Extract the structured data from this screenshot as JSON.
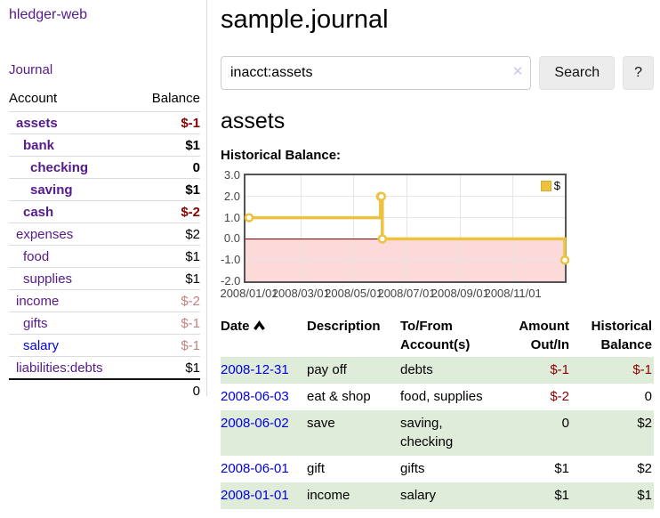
{
  "sidebar": {
    "app_title": "hledger-web",
    "nav_journal": "Journal",
    "accounts": {
      "col_account": "Account",
      "col_balance": "Balance",
      "rows": [
        {
          "name": "assets",
          "depth": 1,
          "bold": true,
          "balance": "$-1",
          "balance_style": "neg-strong"
        },
        {
          "name": "bank",
          "depth": 2,
          "bold": true,
          "balance": "$1",
          "balance_style": "pos-strong"
        },
        {
          "name": "checking",
          "depth": 3,
          "bold": true,
          "balance": "0",
          "balance_style": "pos-strong"
        },
        {
          "name": "saving",
          "depth": 3,
          "bold": true,
          "balance": "$1",
          "balance_style": "pos-strong"
        },
        {
          "name": "cash",
          "depth": 2,
          "bold": true,
          "balance": "$-2",
          "balance_style": "neg-strong"
        },
        {
          "name": "expenses",
          "depth": 1,
          "bold": false,
          "balance": "$2",
          "balance_style": "pos"
        },
        {
          "name": "food",
          "depth": 2,
          "bold": false,
          "balance": "$1",
          "balance_style": "pos"
        },
        {
          "name": "supplies",
          "depth": 2,
          "bold": false,
          "balance": "$1",
          "balance_style": "pos"
        },
        {
          "name": "income",
          "depth": 1,
          "bold": false,
          "balance": "$-2",
          "balance_style": "neg-light"
        },
        {
          "name": "gifts",
          "depth": 2,
          "bold": false,
          "balance": "$-1",
          "balance_style": "neg-light"
        },
        {
          "name": "salary",
          "depth": 2,
          "bold": false,
          "balance": "$-1",
          "balance_style": "neg-light",
          "link_color": "blue"
        },
        {
          "name": "liabilities:debts",
          "depth": 1,
          "bold": false,
          "balance": "$1",
          "balance_style": "pos"
        }
      ],
      "total": "0"
    }
  },
  "main": {
    "title": "sample.journal",
    "search": {
      "value": "inacct:assets",
      "clear": "✕",
      "submit_label": "Search",
      "help_label": "?"
    },
    "account_heading": "assets",
    "section_label": "Historical Balance:"
  },
  "chart_data": {
    "type": "line",
    "title": "Historical Balance",
    "series": [
      {
        "name": "$",
        "style": "step",
        "points": [
          [
            "2008-01-01",
            1
          ],
          [
            "2008-06-01",
            2
          ],
          [
            "2008-06-02",
            2
          ],
          [
            "2008-06-03",
            0
          ],
          [
            "2008-12-31",
            -1
          ]
        ]
      }
    ],
    "x_range": [
      "2008-01-01",
      "2008-12-31"
    ],
    "x_tick_dates": [
      "2008-01-01",
      "2008-03-01",
      "2008-05-01",
      "2008-07-01",
      "2008-09-01",
      "2008-11-01"
    ],
    "x_tick_labels": [
      "2008/01/01",
      "2008/03/01",
      "2008/05/01",
      "2008/07/01",
      "2008/09/01",
      "2008/11/01"
    ],
    "y_ticks": [
      3,
      2,
      1,
      0,
      -1,
      -2
    ],
    "y_tick_labels": [
      "3.0",
      "2.0",
      "1.0",
      "0.0",
      "-1.0",
      "-2.0"
    ],
    "ylim": [
      -2,
      3
    ],
    "grid": true,
    "legend": {
      "label": "$",
      "position": "top-right"
    },
    "colors": {
      "series": "#edc240",
      "marker_fill": "#ffffff",
      "negative_region": "#fcdada",
      "zero_line": "#8b0000",
      "grid": "#e6e6e6",
      "border": "#545454"
    }
  },
  "register": {
    "headers": {
      "date": "Date",
      "description": "Description",
      "accounts": "To/From Account(s)",
      "amount": "Amount Out/In",
      "balance": "Historical Balance"
    },
    "sort": {
      "column": "date",
      "direction": "asc",
      "icon": "chevron-up-icon"
    },
    "rows": [
      {
        "date": "2008-12-31",
        "description": "pay off",
        "accounts": "debts",
        "amount": "$-1",
        "amount_neg": true,
        "balance": "$-1",
        "balance_neg": true
      },
      {
        "date": "2008-06-03",
        "description": "eat & shop",
        "accounts": "food, supplies",
        "amount": "$-2",
        "amount_neg": true,
        "balance": "0",
        "balance_neg": false
      },
      {
        "date": "2008-06-02",
        "description": "save",
        "accounts": "saving, checking",
        "amount": "0",
        "amount_neg": false,
        "balance": "$2",
        "balance_neg": false
      },
      {
        "date": "2008-06-01",
        "description": "gift",
        "accounts": "gifts",
        "amount": "$1",
        "amount_neg": false,
        "balance": "$2",
        "balance_neg": false
      },
      {
        "date": "2008-01-01",
        "description": "income",
        "accounts": "salary",
        "amount": "$1",
        "amount_neg": false,
        "balance": "$1",
        "balance_neg": false
      }
    ]
  }
}
